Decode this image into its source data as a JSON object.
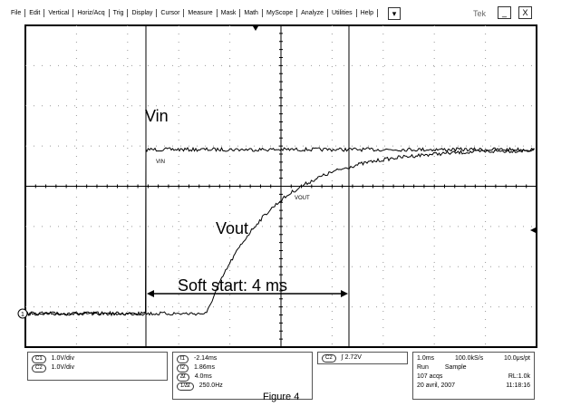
{
  "menu": [
    "File",
    "Edit",
    "Vertical",
    "Horiz/Acq",
    "Trig",
    "Display",
    "Cursor",
    "Measure",
    "Mask",
    "Math",
    "MyScope",
    "Analyze",
    "Utilities",
    "Help"
  ],
  "window": {
    "brand": "Tek",
    "minimize": "_",
    "close": "X",
    "dropdown": "▾"
  },
  "screen": {
    "trace_labels": [
      "VIN",
      "VOUT"
    ],
    "ground_marker": "1",
    "annotations": {
      "vin": "Vin",
      "vout": "Vout",
      "soft_start": "Soft start: 4 ms"
    }
  },
  "channels": [
    {
      "id": "C1",
      "scale": "1.0V/div"
    },
    {
      "id": "C2",
      "scale": "1.0V/div"
    }
  ],
  "cursors": [
    {
      "label": "t1",
      "value": "-2.14ms"
    },
    {
      "label": "t2",
      "value": "1.86ms"
    },
    {
      "label": "Δt",
      "value": "4.0ms"
    },
    {
      "label": "1/Δt",
      "value": "250.0Hz"
    }
  ],
  "trigger": {
    "channel": "C2",
    "slope": "∫",
    "level": "2.72V"
  },
  "acquisition": {
    "timebase": "1.0ms",
    "rate": "100.0kS/s",
    "resolution": "10.0μs/pt",
    "state": "Run",
    "mode": "Sample",
    "acqs": "107 acqs",
    "record": "RL:1.0k",
    "date": "20 avril, 2007",
    "time": "11:18:16"
  },
  "caption": "Figure 4"
}
